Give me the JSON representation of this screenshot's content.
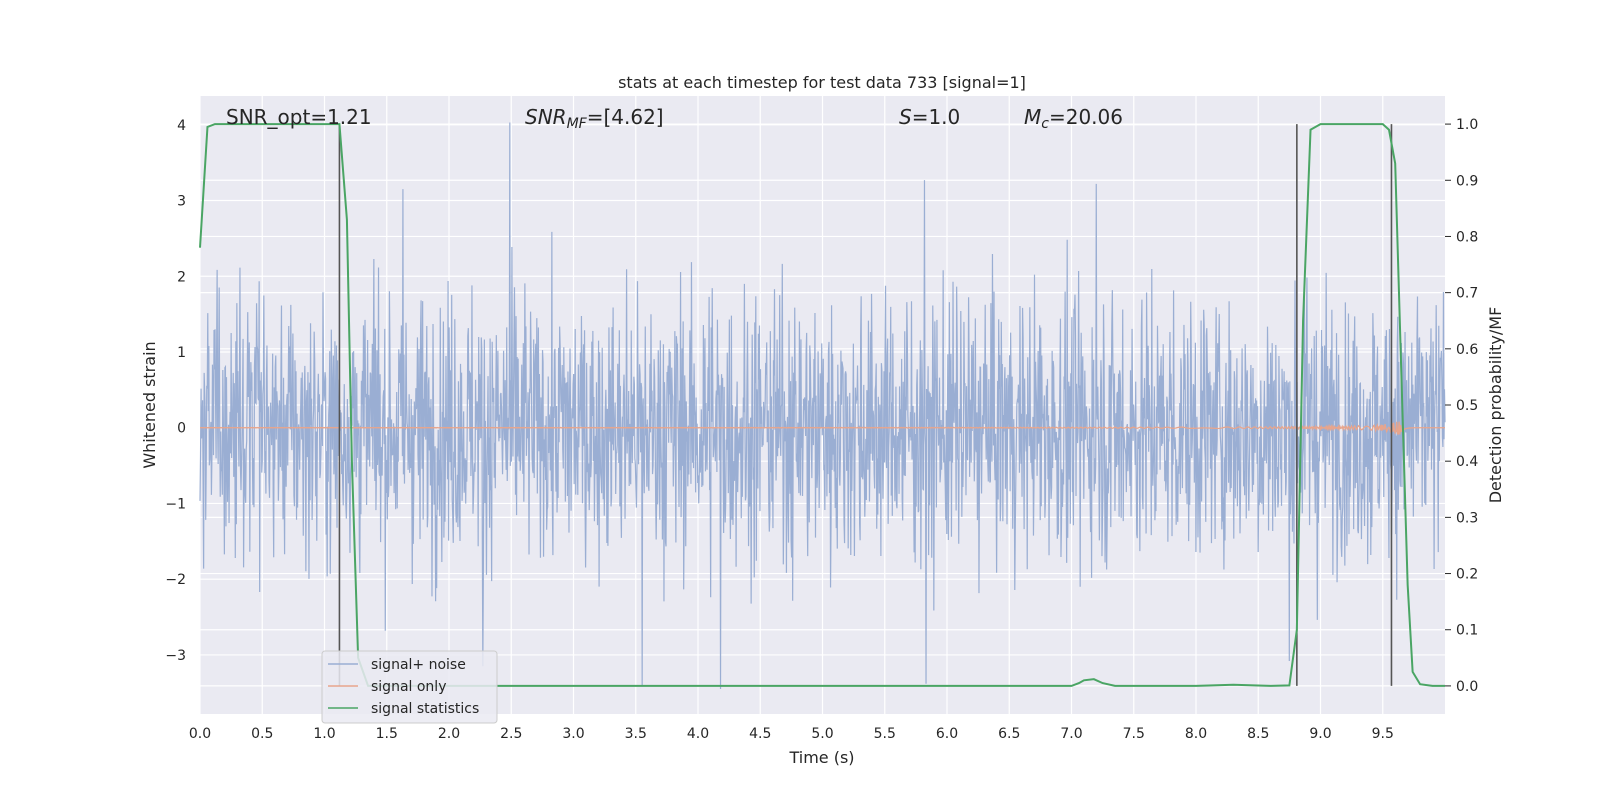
{
  "chart_data": {
    "type": "line",
    "title": "stats at each timestep for test data 733 [signal=1]",
    "xlabel": "Time (s)",
    "ylabel": "Whitened strain",
    "ylabel_right": "Detection probability/MF",
    "xlim": [
      0,
      10
    ],
    "ylim": [
      -3.78,
      4.38
    ],
    "ylim_right": [
      -0.05,
      1.05
    ],
    "x_ticks": [
      "0.0",
      "0.5",
      "1.0",
      "1.5",
      "2.0",
      "2.5",
      "3.0",
      "3.5",
      "4.0",
      "4.5",
      "5.0",
      "5.5",
      "6.0",
      "6.5",
      "7.0",
      "7.5",
      "8.0",
      "8.5",
      "9.0",
      "9.5"
    ],
    "y_ticks": [
      "4",
      "3",
      "2",
      "1",
      "0",
      "−1",
      "−2",
      "−3"
    ],
    "y_tick_values": [
      4,
      3,
      2,
      1,
      0,
      -1,
      -2,
      -3
    ],
    "y_right_ticks": [
      "1.0",
      "0.9",
      "0.8",
      "0.7",
      "0.6",
      "0.5",
      "0.4",
      "0.3",
      "0.2",
      "0.1",
      "0.0"
    ],
    "y_right_tick_values": [
      1.0,
      0.9,
      0.8,
      0.7,
      0.6,
      0.5,
      0.4,
      0.3,
      0.2,
      0.1,
      0.0
    ],
    "grid": true,
    "legend_position": "lower-left",
    "annotations": [
      {
        "key": "snr_opt",
        "text": "SNR_opt=1.21"
      },
      {
        "key": "snr_mf",
        "text_main": "SNR",
        "text_sub": "MF",
        "text_rest": "=[4.62]"
      },
      {
        "key": "s",
        "text_main": "S",
        "text_rest": "=1.0"
      },
      {
        "key": "mc",
        "text_main": "M",
        "text_sub": "c",
        "text_rest": "=20.06"
      }
    ],
    "series": [
      {
        "name": "signal+ noise",
        "color": "#9aaed3",
        "kind": "noise",
        "description_range": [
          -3.45,
          4.03
        ],
        "notable_peaks": [
          {
            "x": 2.49,
            "y": 4.03
          },
          {
            "x": 5.82,
            "y": 3.27
          },
          {
            "x": 7.2,
            "y": 3.22
          },
          {
            "x": 1.63,
            "y": 3.15
          },
          {
            "x": 4.18,
            "y": -3.45
          },
          {
            "x": 3.55,
            "y": -3.41
          },
          {
            "x": 5.83,
            "y": -3.38
          },
          {
            "x": 8.75,
            "y": -3.08
          },
          {
            "x": 2.27,
            "y": -3.15
          }
        ]
      },
      {
        "name": "signal only",
        "color": "#e8a58c",
        "kind": "chirp",
        "peak_x": 9.65,
        "peak_amplitude": 0.12
      },
      {
        "name": "signal statistics",
        "color": "#4aa564",
        "axis": "right",
        "x": [
          0.0,
          0.06,
          0.12,
          0.2,
          0.6,
          1.0,
          1.12,
          1.18,
          1.22,
          1.27,
          1.35,
          2.0,
          4.0,
          6.0,
          7.0,
          7.06,
          7.1,
          7.18,
          7.25,
          7.35,
          8.0,
          8.3,
          8.6,
          8.75,
          8.81,
          8.86,
          8.92,
          9.0,
          9.5,
          9.55,
          9.6,
          9.65,
          9.7,
          9.74,
          9.8,
          9.9,
          10.0
        ],
        "values": [
          0.78,
          0.995,
          1.0,
          1.0,
          1.0,
          1.0,
          1.0,
          0.83,
          0.4,
          0.05,
          0.0,
          0.0,
          0.0,
          0.0,
          0.0,
          0.005,
          0.01,
          0.012,
          0.005,
          0.0,
          0.0,
          0.002,
          0.0,
          0.001,
          0.1,
          0.65,
          0.99,
          1.0,
          1.0,
          0.99,
          0.93,
          0.55,
          0.18,
          0.025,
          0.003,
          0.0,
          0.0
        ]
      }
    ],
    "vlines": [
      1.12,
      8.81,
      9.57
    ],
    "vline_color": "#555555"
  }
}
